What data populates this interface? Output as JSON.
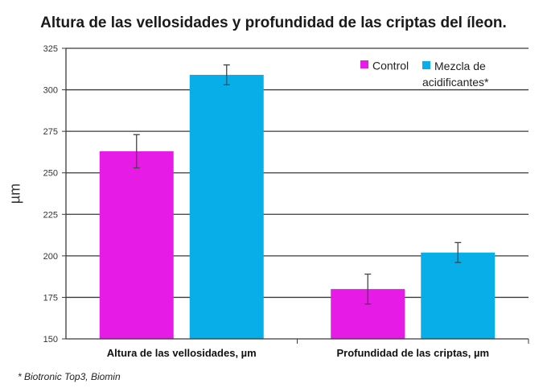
{
  "chart_data": {
    "type": "bar",
    "title": "Altura de las vellosidades y profundidad de las criptas del íleon.",
    "ylabel": "µm",
    "xlabel": "",
    "ylim": [
      150,
      325
    ],
    "yticks": [
      150,
      175,
      200,
      225,
      250,
      275,
      300,
      325
    ],
    "grid": true,
    "legend_position": "top-right",
    "categories": [
      "Altura de las vellosidades, µm",
      "Profundidad de las criptas, µm"
    ],
    "series": [
      {
        "name": "Control",
        "color": "#e61be6",
        "values": [
          263,
          180
        ],
        "error": [
          10,
          9
        ]
      },
      {
        "name": "Mezcla de acidificantes*",
        "color": "#08aee8",
        "values": [
          309,
          202
        ],
        "error": [
          6,
          6
        ]
      }
    ],
    "footnote": "* Biotronic Top3, Biomin"
  }
}
